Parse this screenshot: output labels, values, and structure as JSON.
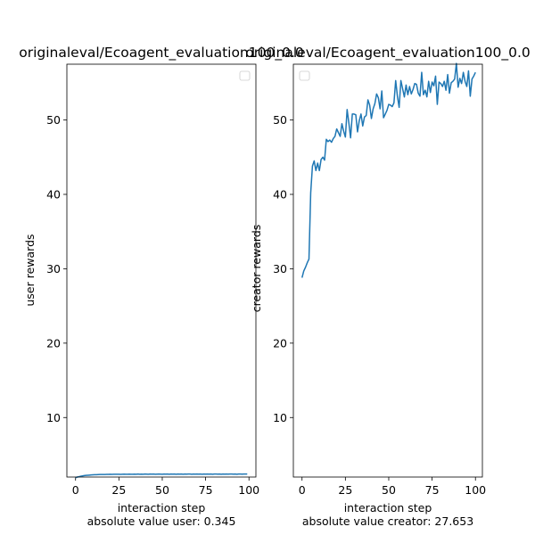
{
  "chart_data": [
    {
      "type": "line",
      "title": "originaleval/Ecoagent_evaluation100_0.0",
      "xlabel": "interaction step",
      "ylabel": "user rewards",
      "caption": "absolute value user: 0.345",
      "xlim": [
        -5,
        104
      ],
      "ylim": [
        2.0,
        57.5
      ],
      "xticks": [
        0,
        25,
        50,
        75,
        100
      ],
      "yticks": [
        10,
        20,
        30,
        40,
        50
      ],
      "legend": "top-right",
      "line_color": "#1f77b4",
      "x_start": 0,
      "x_step": 1,
      "values": [
        1.9,
        2.0,
        2.05,
        2.1,
        2.15,
        2.2,
        2.22,
        2.24,
        2.26,
        2.28,
        2.3,
        2.31,
        2.32,
        2.33,
        2.34,
        2.34,
        2.35,
        2.35,
        2.36,
        2.36,
        2.37,
        2.36,
        2.37,
        2.38,
        2.37,
        2.38,
        2.36,
        2.38,
        2.39,
        2.37,
        2.38,
        2.39,
        2.38,
        2.37,
        2.39,
        2.38,
        2.4,
        2.38,
        2.39,
        2.38,
        2.4,
        2.39,
        2.38,
        2.4,
        2.39,
        2.4,
        2.38,
        2.39,
        2.4,
        2.39,
        2.38,
        2.4,
        2.39,
        2.41,
        2.38,
        2.4,
        2.39,
        2.4,
        2.38,
        2.41,
        2.39,
        2.4,
        2.38,
        2.4,
        2.39,
        2.41,
        2.4,
        2.38,
        2.4,
        2.39,
        2.41,
        2.39,
        2.4,
        2.38,
        2.41,
        2.39,
        2.4,
        2.39,
        2.4,
        2.38,
        2.41,
        2.4,
        2.39,
        2.4,
        2.38,
        2.41,
        2.39,
        2.4,
        2.39,
        2.41,
        2.4,
        2.39,
        2.4,
        2.38,
        2.41,
        2.4,
        2.39,
        2.4,
        2.41,
        2.4
      ]
    },
    {
      "type": "line",
      "title": "originaleval/Ecoagent_evaluation100_0.0",
      "xlabel": "interaction step",
      "ylabel": "creator rewards",
      "caption": "absolute value creator: 27.653",
      "xlim": [
        -5,
        104
      ],
      "ylim": [
        2.0,
        57.5
      ],
      "xticks": [
        0,
        25,
        50,
        75,
        100
      ],
      "yticks": [
        10,
        20,
        30,
        40,
        50
      ],
      "legend": "top-left",
      "line_color": "#1f77b4",
      "x_start": 0,
      "x_step": 1,
      "values": [
        28.8,
        29.7,
        30.2,
        30.8,
        31.3,
        40.2,
        43.8,
        44.5,
        43.2,
        44.2,
        43.2,
        44.7,
        45.0,
        44.6,
        47.4,
        47.1,
        47.3,
        47.0,
        47.5,
        47.8,
        48.8,
        48.3,
        47.8,
        49.5,
        48.5,
        47.7,
        51.4,
        49.6,
        47.6,
        50.8,
        50.8,
        50.7,
        48.4,
        49.9,
        50.8,
        49.2,
        50.4,
        50.6,
        52.7,
        52.0,
        50.2,
        51.5,
        52.2,
        53.5,
        53.0,
        51.5,
        53.9,
        50.3,
        50.8,
        51.3,
        52.1,
        52.0,
        51.8,
        52.3,
        55.3,
        53.2,
        51.7,
        55.3,
        54.2,
        53.1,
        54.7,
        53.4,
        54.5,
        53.5,
        54.1,
        54.9,
        54.8,
        53.6,
        53.2,
        56.4,
        53.4,
        54.0,
        53.1,
        55.2,
        53.7,
        55.1,
        54.6,
        55.9,
        52.1,
        55.1,
        54.9,
        54.5,
        55.2,
        54.0,
        56.1,
        53.6,
        55.0,
        55.2,
        55.5,
        57.6,
        54.4,
        55.6,
        54.9,
        56.4,
        55.2,
        54.5,
        56.6,
        53.2,
        55.5,
        55.9,
        56.4
      ]
    }
  ]
}
